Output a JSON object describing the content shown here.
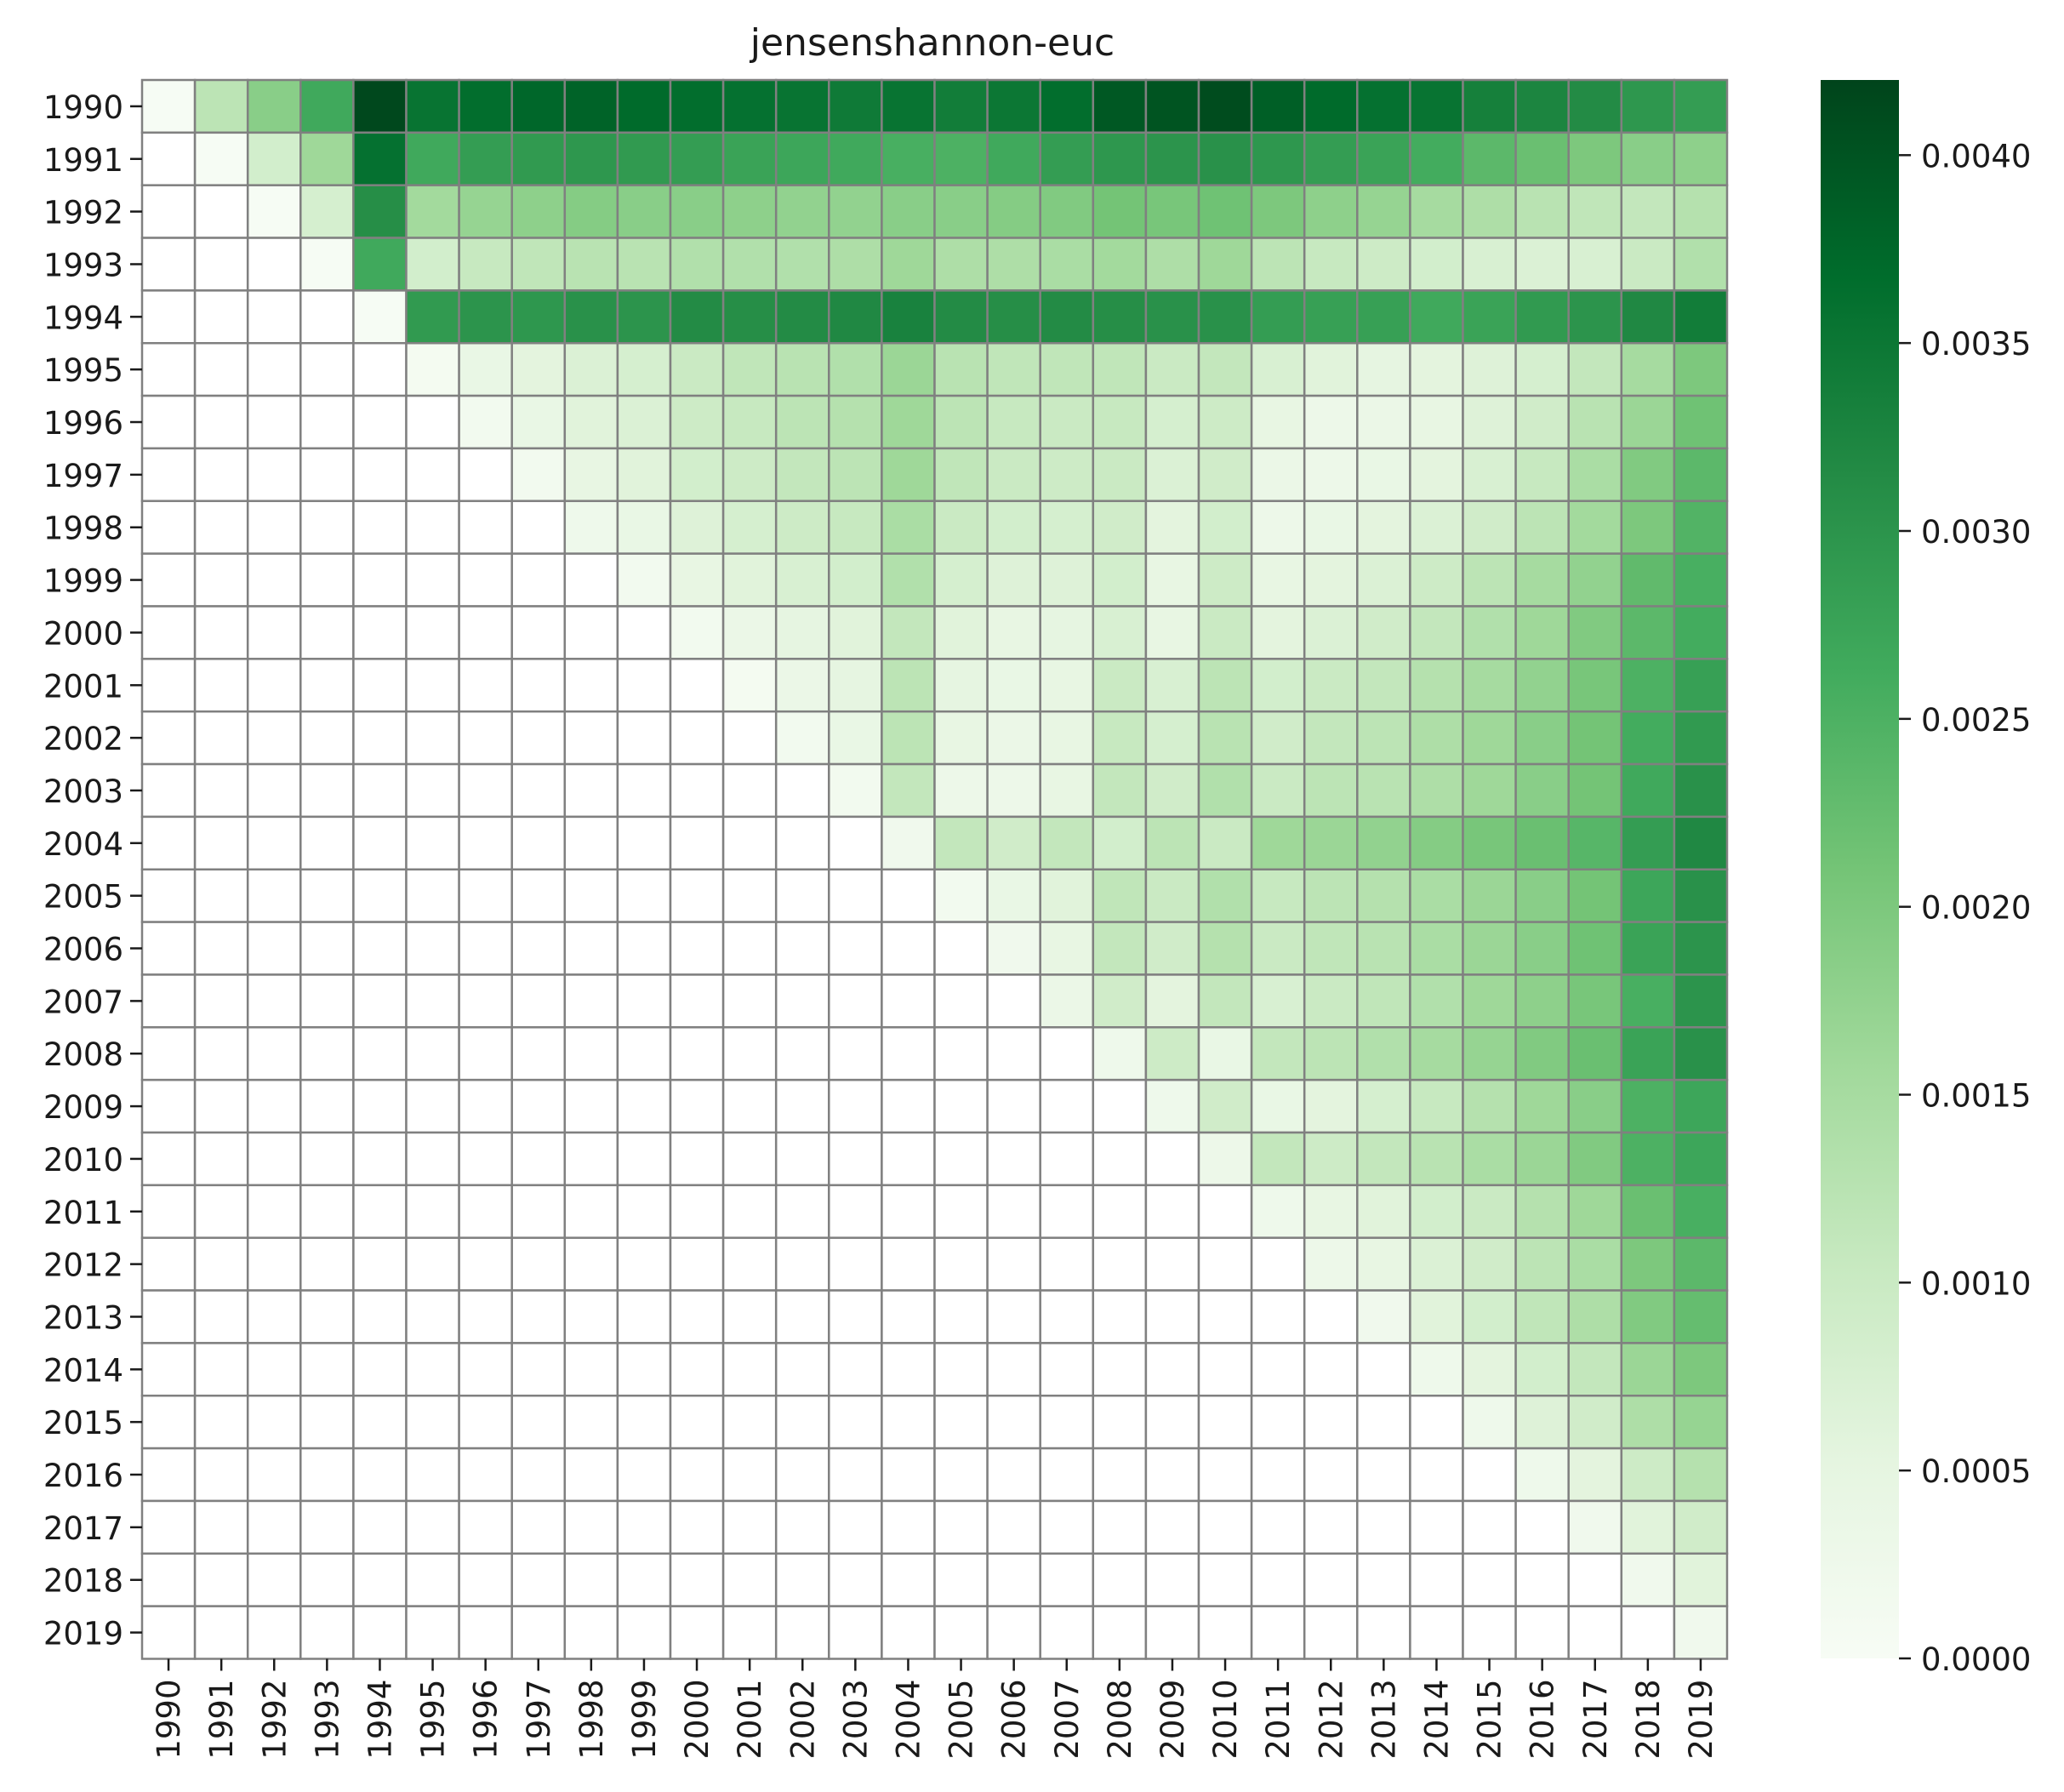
{
  "chart_data": {
    "type": "heatmap",
    "title": "jensenshannon-euc",
    "xlabel": "",
    "ylabel": "",
    "x_categories": [
      "1990",
      "1991",
      "1992",
      "1993",
      "1994",
      "1995",
      "1996",
      "1997",
      "1998",
      "1999",
      "2000",
      "2001",
      "2002",
      "2003",
      "2004",
      "2005",
      "2006",
      "2007",
      "2008",
      "2009",
      "2010",
      "2011",
      "2012",
      "2013",
      "2014",
      "2015",
      "2016",
      "2017",
      "2018",
      "2019"
    ],
    "y_categories": [
      "1990",
      "1991",
      "1992",
      "1993",
      "1994",
      "1995",
      "1996",
      "1997",
      "1998",
      "1999",
      "2000",
      "2001",
      "2002",
      "2003",
      "2004",
      "2005",
      "2006",
      "2007",
      "2008",
      "2009",
      "2010",
      "2011",
      "2012",
      "2013",
      "2014",
      "2015",
      "2016",
      "2017",
      "2018",
      "2019"
    ],
    "colormap": "Greens",
    "vmin": 0.0,
    "vmax": 0.0042,
    "mask": "lower-triangle (below diagonal) blank",
    "grid_color": "#808080",
    "colorbar_ticks": [
      "0.0000",
      "0.0005",
      "0.0010",
      "0.0015",
      "0.0020",
      "0.0025",
      "0.0030",
      "0.0035",
      "0.0040"
    ],
    "colorbar_tick_values": [
      0.0,
      0.0005,
      0.001,
      0.0015,
      0.002,
      0.0025,
      0.003,
      0.0035,
      0.004
    ],
    "rows": [
      [
        2e-05,
        0.0012,
        0.00185,
        0.00265,
        0.00415,
        0.00355,
        0.00365,
        0.00375,
        0.0038,
        0.0037,
        0.00365,
        0.0036,
        0.00355,
        0.00345,
        0.00355,
        0.0034,
        0.0035,
        0.00365,
        0.00395,
        0.004,
        0.0041,
        0.00385,
        0.0037,
        0.0036,
        0.00355,
        0.00335,
        0.00325,
        0.00315,
        0.00295,
        0.00285
      ],
      [
        0.0,
        2e-05,
        0.00085,
        0.0016,
        0.0036,
        0.00265,
        0.00285,
        0.0029,
        0.00295,
        0.0029,
        0.00285,
        0.00275,
        0.0027,
        0.00265,
        0.00255,
        0.0025,
        0.00265,
        0.00285,
        0.00295,
        0.003,
        0.00305,
        0.00295,
        0.00285,
        0.00275,
        0.0026,
        0.00235,
        0.0022,
        0.002,
        0.00185,
        0.0018
      ],
      [
        0.0,
        0.0,
        2e-05,
        0.0008,
        0.0031,
        0.00155,
        0.0017,
        0.0018,
        0.0019,
        0.00185,
        0.00185,
        0.0018,
        0.00175,
        0.00175,
        0.00185,
        0.00185,
        0.0019,
        0.00195,
        0.0021,
        0.00205,
        0.00215,
        0.002,
        0.0018,
        0.0017,
        0.0015,
        0.0014,
        0.00125,
        0.00115,
        0.0011,
        0.0013
      ],
      [
        0.0,
        0.0,
        0.0,
        2e-05,
        0.00265,
        0.00085,
        0.00105,
        0.00115,
        0.00125,
        0.00125,
        0.00135,
        0.00135,
        0.00135,
        0.0014,
        0.0016,
        0.0014,
        0.0014,
        0.00145,
        0.00155,
        0.0014,
        0.0016,
        0.0012,
        0.00105,
        0.00095,
        0.00085,
        0.00075,
        0.0007,
        0.00075,
        0.001,
        0.00135
      ],
      [
        0.0,
        0.0,
        0.0,
        0.0,
        2e-05,
        0.0029,
        0.003,
        0.00295,
        0.00305,
        0.003,
        0.00315,
        0.0031,
        0.00315,
        0.0032,
        0.0033,
        0.00315,
        0.0031,
        0.00315,
        0.0031,
        0.00305,
        0.00305,
        0.00285,
        0.0028,
        0.0028,
        0.00265,
        0.00275,
        0.0029,
        0.003,
        0.0032,
        0.0034
      ],
      [
        0.0,
        0.0,
        0.0,
        0.0,
        0.0,
        0.0001,
        0.0004,
        0.00055,
        0.0007,
        0.0008,
        0.001,
        0.00115,
        0.00125,
        0.00135,
        0.00165,
        0.00125,
        0.00115,
        0.00115,
        0.00115,
        0.001,
        0.0011,
        0.00075,
        0.0006,
        0.0005,
        0.00055,
        0.00065,
        0.0008,
        0.0011,
        0.0015,
        0.002
      ],
      [
        0.0,
        0.0,
        0.0,
        0.0,
        0.0,
        0.0,
        0.00015,
        0.0004,
        0.0006,
        0.0007,
        0.00095,
        0.00105,
        0.0012,
        0.0013,
        0.0016,
        0.0012,
        0.00105,
        0.001,
        0.00105,
        0.0008,
        0.00095,
        0.00045,
        0.0003,
        0.00035,
        0.00045,
        0.00065,
        0.0009,
        0.00125,
        0.00165,
        0.00215
      ],
      [
        0.0,
        0.0,
        0.0,
        0.0,
        0.0,
        0.0,
        0.0,
        0.00015,
        0.00045,
        0.0006,
        0.00085,
        0.00095,
        0.0011,
        0.0012,
        0.0016,
        0.00115,
        0.001,
        0.00095,
        0.001,
        0.0007,
        0.0009,
        0.00035,
        0.0003,
        0.0004,
        0.00055,
        0.00075,
        0.00105,
        0.00145,
        0.00195,
        0.00235
      ],
      [
        0.0,
        0.0,
        0.0,
        0.0,
        0.0,
        0.0,
        0.0,
        0.0,
        0.00025,
        0.0004,
        0.00065,
        0.0008,
        0.00095,
        0.00105,
        0.00145,
        0.001,
        0.00085,
        0.0008,
        0.0009,
        0.00055,
        0.00085,
        0.0003,
        0.0004,
        0.00055,
        0.0007,
        0.0009,
        0.0012,
        0.00155,
        0.002,
        0.00245
      ],
      [
        0.0,
        0.0,
        0.0,
        0.0,
        0.0,
        0.0,
        0.0,
        0.0,
        0.0,
        0.00015,
        0.00045,
        0.0006,
        0.00075,
        0.00085,
        0.00135,
        0.0008,
        0.00065,
        0.00065,
        0.00085,
        0.00045,
        0.00095,
        0.00045,
        0.00055,
        0.0007,
        0.00095,
        0.0012,
        0.0015,
        0.00175,
        0.0023,
        0.00255
      ],
      [
        0.0,
        0.0,
        0.0,
        0.0,
        0.0,
        0.0,
        0.0,
        0.0,
        0.0,
        0.0,
        0.00015,
        0.00035,
        0.0005,
        0.0006,
        0.0011,
        0.0006,
        0.00045,
        0.0005,
        0.00075,
        0.00045,
        0.001,
        0.00055,
        0.0007,
        0.0009,
        0.0011,
        0.00135,
        0.0016,
        0.00195,
        0.00235,
        0.0026
      ],
      [
        0.0,
        0.0,
        0.0,
        0.0,
        0.0,
        0.0,
        0.0,
        0.0,
        0.0,
        0.0,
        0.0,
        0.0001,
        0.00035,
        0.0005,
        0.0012,
        0.0005,
        0.0004,
        0.00045,
        0.001,
        0.00075,
        0.0012,
        0.00085,
        0.001,
        0.0011,
        0.0013,
        0.0015,
        0.00175,
        0.00205,
        0.0025,
        0.0028
      ],
      [
        0.0,
        0.0,
        0.0,
        0.0,
        0.0,
        0.0,
        0.0,
        0.0,
        0.0,
        0.0,
        0.0,
        0.0,
        0.00015,
        0.0004,
        0.0012,
        0.00045,
        0.00035,
        0.00045,
        0.00105,
        0.0008,
        0.00125,
        0.0009,
        0.0011,
        0.0012,
        0.0014,
        0.0016,
        0.00185,
        0.0021,
        0.0026,
        0.0029
      ],
      [
        0.0,
        0.0,
        0.0,
        0.0,
        0.0,
        0.0,
        0.0,
        0.0,
        0.0,
        0.0,
        0.0,
        0.0,
        0.0,
        0.00015,
        0.0011,
        0.0003,
        0.0003,
        0.00045,
        0.0011,
        0.0009,
        0.00135,
        0.001,
        0.0012,
        0.00125,
        0.0014,
        0.0016,
        0.00185,
        0.0021,
        0.00265,
        0.00305
      ],
      [
        0.0,
        0.0,
        0.0,
        0.0,
        0.0,
        0.0,
        0.0,
        0.0,
        0.0,
        0.0,
        0.0,
        0.0,
        0.0,
        0.0,
        0.0002,
        0.0011,
        0.0009,
        0.0011,
        0.00085,
        0.0012,
        0.001,
        0.0016,
        0.00165,
        0.00175,
        0.0019,
        0.00205,
        0.0022,
        0.0024,
        0.00285,
        0.0032
      ],
      [
        0.0,
        0.0,
        0.0,
        0.0,
        0.0,
        0.0,
        0.0,
        0.0,
        0.0,
        0.0,
        0.0,
        0.0,
        0.0,
        0.0,
        0.0,
        0.00015,
        0.0004,
        0.0006,
        0.00115,
        0.001,
        0.00135,
        0.00105,
        0.0012,
        0.0013,
        0.00145,
        0.00165,
        0.00185,
        0.0021,
        0.0027,
        0.00305
      ],
      [
        0.0,
        0.0,
        0.0,
        0.0,
        0.0,
        0.0,
        0.0,
        0.0,
        0.0,
        0.0,
        0.0,
        0.0,
        0.0,
        0.0,
        0.0,
        0.0,
        0.0002,
        0.00045,
        0.0011,
        0.0009,
        0.0013,
        0.001,
        0.00115,
        0.00125,
        0.00145,
        0.00165,
        0.00185,
        0.00215,
        0.00275,
        0.003
      ],
      [
        0.0,
        0.0,
        0.0,
        0.0,
        0.0,
        0.0,
        0.0,
        0.0,
        0.0,
        0.0,
        0.0,
        0.0,
        0.0,
        0.0,
        0.0,
        0.0,
        0.0,
        0.00035,
        0.0009,
        0.00055,
        0.0011,
        0.00075,
        0.001,
        0.00115,
        0.00135,
        0.0016,
        0.0018,
        0.00205,
        0.00255,
        0.003
      ],
      [
        0.0,
        0.0,
        0.0,
        0.0,
        0.0,
        0.0,
        0.0,
        0.0,
        0.0,
        0.0,
        0.0,
        0.0,
        0.0,
        0.0,
        0.0,
        0.0,
        0.0,
        0.0,
        0.00025,
        0.00095,
        0.0004,
        0.0011,
        0.0012,
        0.00135,
        0.0015,
        0.0017,
        0.00195,
        0.0022,
        0.00275,
        0.00305
      ],
      [
        0.0,
        0.0,
        0.0,
        0.0,
        0.0,
        0.0,
        0.0,
        0.0,
        0.0,
        0.0,
        0.0,
        0.0,
        0.0,
        0.0,
        0.0,
        0.0,
        0.0,
        0.0,
        0.0,
        0.00025,
        0.0009,
        0.0004,
        0.00055,
        0.0008,
        0.00105,
        0.0013,
        0.0016,
        0.00185,
        0.0025,
        0.0027
      ],
      [
        0.0,
        0.0,
        0.0,
        0.0,
        0.0,
        0.0,
        0.0,
        0.0,
        0.0,
        0.0,
        0.0,
        0.0,
        0.0,
        0.0,
        0.0,
        0.0,
        0.0,
        0.0,
        0.0,
        0.0,
        0.0003,
        0.0011,
        0.00095,
        0.0011,
        0.00125,
        0.00145,
        0.00165,
        0.00195,
        0.0025,
        0.0027
      ],
      [
        0.0,
        0.0,
        0.0,
        0.0,
        0.0,
        0.0,
        0.0,
        0.0,
        0.0,
        0.0,
        0.0,
        0.0,
        0.0,
        0.0,
        0.0,
        0.0,
        0.0,
        0.0,
        0.0,
        0.0,
        0.0,
        0.00025,
        0.00045,
        0.0006,
        0.00085,
        0.001,
        0.0013,
        0.0016,
        0.0022,
        0.00255
      ],
      [
        0.0,
        0.0,
        0.0,
        0.0,
        0.0,
        0.0,
        0.0,
        0.0,
        0.0,
        0.0,
        0.0,
        0.0,
        0.0,
        0.0,
        0.0,
        0.0,
        0.0,
        0.0,
        0.0,
        0.0,
        0.0,
        0.0,
        0.0003,
        0.00045,
        0.0007,
        0.0009,
        0.0012,
        0.00145,
        0.002,
        0.00235
      ],
      [
        0.0,
        0.0,
        0.0,
        0.0,
        0.0,
        0.0,
        0.0,
        0.0,
        0.0,
        0.0,
        0.0,
        0.0,
        0.0,
        0.0,
        0.0,
        0.0,
        0.0,
        0.0,
        0.0,
        0.0,
        0.0,
        0.0,
        0.0,
        0.0002,
        0.0006,
        0.00085,
        0.00115,
        0.0014,
        0.00195,
        0.00225
      ],
      [
        0.0,
        0.0,
        0.0,
        0.0,
        0.0,
        0.0,
        0.0,
        0.0,
        0.0,
        0.0,
        0.0,
        0.0,
        0.0,
        0.0,
        0.0,
        0.0,
        0.0,
        0.0,
        0.0,
        0.0,
        0.0,
        0.0,
        0.0,
        0.0,
        0.00025,
        0.00055,
        0.00085,
        0.0011,
        0.00165,
        0.002
      ],
      [
        0.0,
        0.0,
        0.0,
        0.0,
        0.0,
        0.0,
        0.0,
        0.0,
        0.0,
        0.0,
        0.0,
        0.0,
        0.0,
        0.0,
        0.0,
        0.0,
        0.0,
        0.0,
        0.0,
        0.0,
        0.0,
        0.0,
        0.0,
        0.0,
        0.0,
        0.00025,
        0.00065,
        0.0009,
        0.0014,
        0.0017
      ],
      [
        0.0,
        0.0,
        0.0,
        0.0,
        0.0,
        0.0,
        0.0,
        0.0,
        0.0,
        0.0,
        0.0,
        0.0,
        0.0,
        0.0,
        0.0,
        0.0,
        0.0,
        0.0,
        0.0,
        0.0,
        0.0,
        0.0,
        0.0,
        0.0,
        0.0,
        0.0,
        0.00025,
        0.00055,
        0.00095,
        0.0013
      ],
      [
        0.0,
        0.0,
        0.0,
        0.0,
        0.0,
        0.0,
        0.0,
        0.0,
        0.0,
        0.0,
        0.0,
        0.0,
        0.0,
        0.0,
        0.0,
        0.0,
        0.0,
        0.0,
        0.0,
        0.0,
        0.0,
        0.0,
        0.0,
        0.0,
        0.0,
        0.0,
        0.0,
        0.0002,
        0.0006,
        0.0009
      ],
      [
        0.0,
        0.0,
        0.0,
        0.0,
        0.0,
        0.0,
        0.0,
        0.0,
        0.0,
        0.0,
        0.0,
        0.0,
        0.0,
        0.0,
        0.0,
        0.0,
        0.0,
        0.0,
        0.0,
        0.0,
        0.0,
        0.0,
        0.0,
        0.0,
        0.0,
        0.0,
        0.0,
        0.0,
        0.0002,
        0.0006
      ],
      [
        0.0,
        0.0,
        0.0,
        0.0,
        0.0,
        0.0,
        0.0,
        0.0,
        0.0,
        0.0,
        0.0,
        0.0,
        0.0,
        0.0,
        0.0,
        0.0,
        0.0,
        0.0,
        0.0,
        0.0,
        0.0,
        0.0,
        0.0,
        0.0,
        0.0,
        0.0,
        0.0,
        0.0,
        0.0,
        0.0002
      ]
    ]
  }
}
